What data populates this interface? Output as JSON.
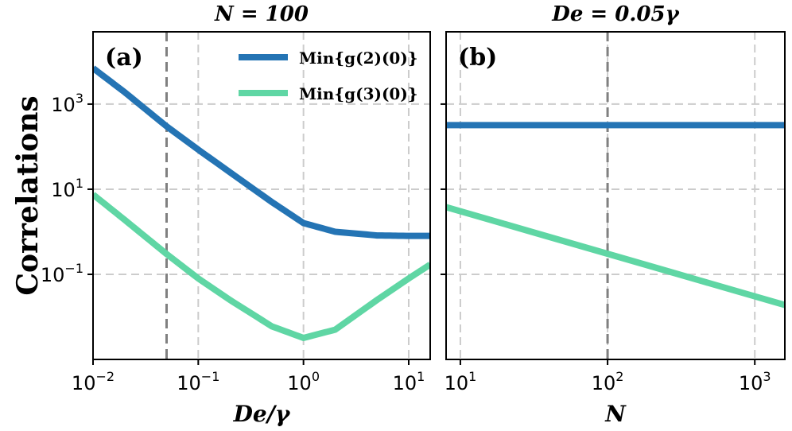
{
  "ylabel": "Correlations",
  "colors": {
    "g2": "#2474b4",
    "g3": "#5fd6a4",
    "grid": "#cccccc",
    "marker": "#808080"
  },
  "legend": {
    "g2": "Min{g(2)(0)}",
    "g3": "Min{g(3)(0)}"
  },
  "chart_data": [
    {
      "type": "line",
      "panel_label": "(a)",
      "title": "N = 100",
      "xlabel": "De/γ",
      "xscale": "log",
      "yscale": "log",
      "xlim": [
        0.01,
        16
      ],
      "ylim": [
        0.001,
        50000
      ],
      "xticks": [
        0.01,
        0.1,
        1,
        10
      ],
      "xtick_labels": [
        {
          "base": "10",
          "exp": "−2"
        },
        {
          "base": "10",
          "exp": "−1"
        },
        {
          "base": "10",
          "exp": "0"
        },
        {
          "base": "10",
          "exp": "1"
        }
      ],
      "yticks": [
        1000,
        10,
        0.1
      ],
      "ytick_labels": [
        {
          "base": "10",
          "exp": "3"
        },
        {
          "base": "10",
          "exp": "1"
        },
        {
          "base": "10",
          "exp": "−1"
        }
      ],
      "grid": true,
      "vline": 0.05,
      "series": [
        {
          "name": "Min{g(2)(0)}",
          "color_key": "g2",
          "x": [
            0.01,
            0.02,
            0.05,
            0.1,
            0.2,
            0.5,
            1,
            2,
            5,
            10,
            16
          ],
          "y": [
            7000,
            1900,
            300,
            85,
            25,
            5,
            1.6,
            1.0,
            0.82,
            0.8,
            0.8
          ]
        },
        {
          "name": "Min{g(3)(0)}",
          "color_key": "g3",
          "x": [
            0.01,
            0.02,
            0.05,
            0.1,
            0.2,
            0.5,
            1,
            2,
            5,
            10,
            16
          ],
          "y": [
            7.5,
            1.9,
            0.3,
            0.08,
            0.025,
            0.006,
            0.0032,
            0.005,
            0.025,
            0.08,
            0.17
          ]
        }
      ]
    },
    {
      "type": "line",
      "panel_label": "(b)",
      "title": "De = 0.05γ",
      "xlabel": "N",
      "xscale": "log",
      "yscale": "log",
      "xlim": [
        8,
        1600
      ],
      "ylim": [
        0.001,
        50000
      ],
      "xticks": [
        10,
        100,
        1000
      ],
      "xtick_labels": [
        {
          "base": "10",
          "exp": "1"
        },
        {
          "base": "10",
          "exp": "2"
        },
        {
          "base": "10",
          "exp": "3"
        }
      ],
      "grid": true,
      "vline": 100,
      "series": [
        {
          "name": "Min{g(2)(0)}",
          "color_key": "g2",
          "x": [
            8,
            1600
          ],
          "y": [
            320,
            320
          ]
        },
        {
          "name": "Min{g(3)(0)}",
          "color_key": "g3",
          "x": [
            8,
            1600
          ],
          "y": [
            3.8,
            0.019
          ]
        }
      ]
    }
  ]
}
